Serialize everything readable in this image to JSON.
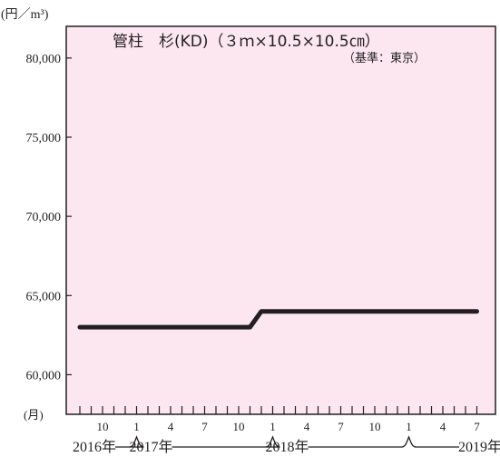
{
  "chart_data": {
    "type": "line",
    "title": "管柱　杉(KD)（３ｍ×10.5×10.5㎝）",
    "subtitle": "（基準：東京）",
    "ylabel": "(円／m³)",
    "xlabel": "(月)",
    "ylim": [
      57500,
      82000
    ],
    "yticks": [
      {
        "value": 60000,
        "label": "60,000"
      },
      {
        "value": 65000,
        "label": "65,000"
      },
      {
        "value": 70000,
        "label": "70,000"
      },
      {
        "value": 75000,
        "label": "75,000"
      },
      {
        "value": 80000,
        "label": "80,000"
      }
    ],
    "x_month_range": [
      "2016-08",
      "2019-07"
    ],
    "month_labels": [
      {
        "month": "2016-10",
        "label": "10"
      },
      {
        "month": "2017-01",
        "label": "1"
      },
      {
        "month": "2017-04",
        "label": "4"
      },
      {
        "month": "2017-07",
        "label": "7"
      },
      {
        "month": "2017-10",
        "label": "10"
      },
      {
        "month": "2018-01",
        "label": "1"
      },
      {
        "month": "2018-04",
        "label": "4"
      },
      {
        "month": "2018-07",
        "label": "7"
      },
      {
        "month": "2018-10",
        "label": "10"
      },
      {
        "month": "2019-01",
        "label": "1"
      },
      {
        "month": "2019-04",
        "label": "4"
      },
      {
        "month": "2019-07",
        "label": "7"
      }
    ],
    "year_labels": [
      {
        "month": "2016-08",
        "label": "2016年"
      },
      {
        "month": "2017-01",
        "label": "2017年"
      },
      {
        "month": "2018-01",
        "label": "2018年"
      },
      {
        "month": "2019-06",
        "label": "2019年"
      }
    ],
    "series": [
      {
        "x": [
          "2016-08",
          "2017-11",
          "2017-12",
          "2019-07"
        ],
        "y": [
          63000,
          63000,
          64000,
          64000
        ]
      }
    ],
    "grid": false,
    "colors": {
      "plot_bg": "#fce7f1",
      "line": "#231f20",
      "axis": "#231f20"
    }
  }
}
